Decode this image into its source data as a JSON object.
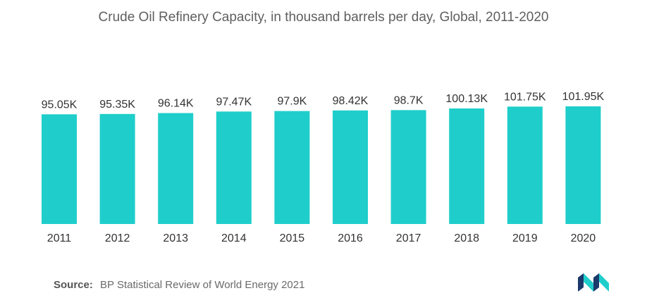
{
  "chart_data": {
    "type": "bar",
    "title": "Crude Oil Refinery Capacity, in thousand barrels per day, Global, 2011-2020",
    "categories": [
      "2011",
      "2012",
      "2013",
      "2014",
      "2015",
      "2016",
      "2017",
      "2018",
      "2019",
      "2020"
    ],
    "values": [
      95.05,
      95.35,
      96.14,
      97.47,
      97.9,
      98.42,
      98.7,
      100.13,
      101.75,
      101.95
    ],
    "value_labels": [
      "95.05K",
      "95.35K",
      "96.14K",
      "97.47K",
      "97.9K",
      "98.42K",
      "98.7K",
      "100.13K",
      "101.75K",
      "101.95K"
    ],
    "xlabel": "",
    "ylabel": "",
    "grid": false,
    "bar_color": "#1FCECB"
  },
  "footer": {
    "source_label": "Source:",
    "source_text": "BP Statistical Review of World Energy 2021"
  },
  "logo": {
    "icon": "mordor-logo-icon",
    "colors": [
      "#1b3a6b",
      "#1FCECB"
    ]
  }
}
